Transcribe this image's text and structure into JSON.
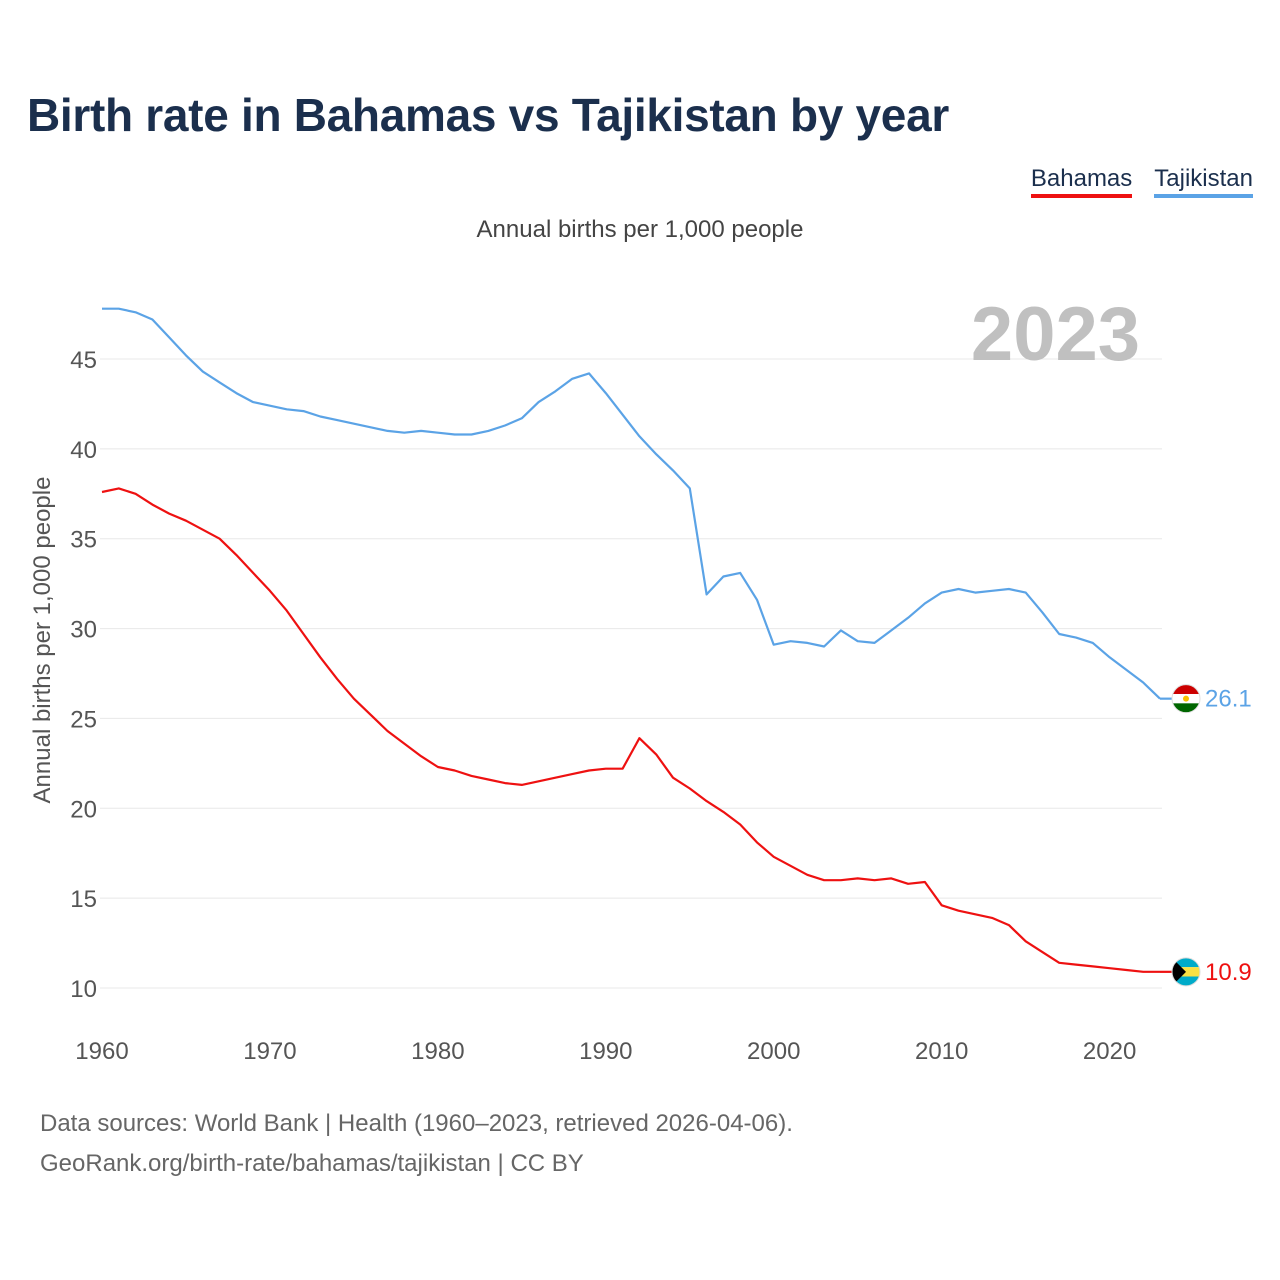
{
  "title": "Birth rate in Bahamas vs Tajikistan by year",
  "footer": {
    "line1": "Data sources: World Bank | Health (1960–2023, retrieved 2026-04-06).",
    "line2": "GeoRank.org/birth-rate/bahamas/tajikistan | CC BY"
  },
  "chart_data": {
    "type": "line",
    "title": "Birth rate in Bahamas vs Tajikistan by year",
    "subtitle": "Annual births per 1,000 people",
    "ylabel": "Annual births per 1,000 people",
    "xlabel": "",
    "year_watermark": "2023",
    "xlim": [
      1960,
      2023
    ],
    "ylim": [
      10,
      48
    ],
    "x_ticks": [
      1960,
      1970,
      1980,
      1990,
      2000,
      2010,
      2020
    ],
    "y_ticks": [
      10,
      15,
      20,
      25,
      30,
      35,
      40,
      45
    ],
    "grid": true,
    "legend_position": "top-right",
    "x": [
      1960,
      1961,
      1962,
      1963,
      1964,
      1965,
      1966,
      1967,
      1968,
      1969,
      1970,
      1971,
      1972,
      1973,
      1974,
      1975,
      1976,
      1977,
      1978,
      1979,
      1980,
      1981,
      1982,
      1983,
      1984,
      1985,
      1986,
      1987,
      1988,
      1989,
      1990,
      1991,
      1992,
      1993,
      1994,
      1995,
      1996,
      1997,
      1998,
      1999,
      2000,
      2001,
      2002,
      2003,
      2004,
      2005,
      2006,
      2007,
      2008,
      2009,
      2010,
      2011,
      2012,
      2013,
      2014,
      2015,
      2016,
      2017,
      2018,
      2019,
      2020,
      2021,
      2022,
      2023
    ],
    "series": [
      {
        "name": "Bahamas",
        "color": "#ee1111",
        "end_label": "10.9",
        "values": [
          37.6,
          37.8,
          37.5,
          36.9,
          36.4,
          36.0,
          35.5,
          35.0,
          34.1,
          33.1,
          32.1,
          31.0,
          29.7,
          28.4,
          27.2,
          26.1,
          25.2,
          24.3,
          23.6,
          22.9,
          22.3,
          22.1,
          21.8,
          21.6,
          21.4,
          21.3,
          21.5,
          21.7,
          21.9,
          22.1,
          22.2,
          22.2,
          23.9,
          23.0,
          21.7,
          21.1,
          20.4,
          19.8,
          19.1,
          18.1,
          17.3,
          16.8,
          16.3,
          16.0,
          16.0,
          16.1,
          16.0,
          16.1,
          15.8,
          15.9,
          14.6,
          14.3,
          14.1,
          13.9,
          13.5,
          12.6,
          12.0,
          11.4,
          11.3,
          11.2,
          11.1,
          11.0,
          10.9,
          10.9
        ]
      },
      {
        "name": "Tajikistan",
        "color": "#5ba3e6",
        "end_label": "26.1",
        "values": [
          47.8,
          47.8,
          47.6,
          47.2,
          46.2,
          45.2,
          44.3,
          43.7,
          43.1,
          42.6,
          42.4,
          42.2,
          42.1,
          41.8,
          41.6,
          41.4,
          41.2,
          41.0,
          40.9,
          41.0,
          40.9,
          40.8,
          40.8,
          41.0,
          41.3,
          41.7,
          42.6,
          43.2,
          43.9,
          44.2,
          43.1,
          41.9,
          40.7,
          39.7,
          38.8,
          37.8,
          31.9,
          32.9,
          33.1,
          31.6,
          29.1,
          29.3,
          29.2,
          29.0,
          29.9,
          29.3,
          29.2,
          29.9,
          30.6,
          31.4,
          32.0,
          32.2,
          32.0,
          32.1,
          32.2,
          32.0,
          30.9,
          29.7,
          29.5,
          29.2,
          28.4,
          27.7,
          27.0,
          26.1
        ]
      }
    ]
  }
}
